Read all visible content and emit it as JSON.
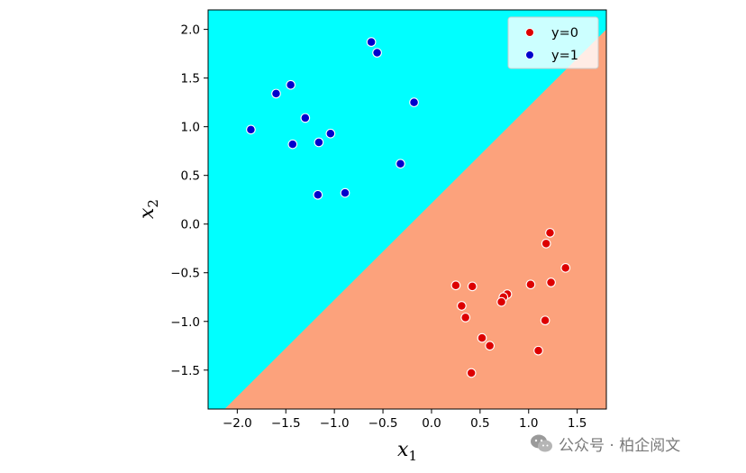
{
  "chart_data": {
    "type": "scatter",
    "xlabel": "x",
    "xlabel_sub": "1",
    "ylabel": "x",
    "ylabel_sub": "2",
    "xlim": [
      -2.3,
      1.8
    ],
    "ylim": [
      -1.9,
      2.2
    ],
    "xticks": [
      -2.0,
      -1.5,
      -1.0,
      -0.5,
      0.0,
      0.5,
      1.0,
      1.5
    ],
    "xtick_labels": [
      "−2.0",
      "−1.5",
      "−1.0",
      "−0.5",
      "0.0",
      "0.5",
      "1.0",
      "1.5"
    ],
    "yticks": [
      2.0,
      1.5,
      1.0,
      0.5,
      0.0,
      -0.5,
      -1.0,
      -1.5
    ],
    "ytick_labels": [
      "2.0",
      "1.5",
      "1.0",
      "0.5",
      "0.0",
      "−0.5",
      "−1.0",
      "−1.5"
    ],
    "decision_boundary": {
      "points": [
        [
          -2.13,
          -1.9
        ],
        [
          1.8,
          2.0
        ]
      ]
    },
    "regions": {
      "upper_color": "#00ffff",
      "lower_color": "#fca27c"
    },
    "legend": {
      "position": "top-right",
      "entries": [
        {
          "label": "y=0",
          "color": "#dd0000"
        },
        {
          "label": "y=1",
          "color": "#0000cc"
        }
      ]
    },
    "series": [
      {
        "name": "y=0",
        "color": "#dd0000",
        "x": [
          1.22,
          1.18,
          1.38,
          0.25,
          0.42,
          1.02,
          1.23,
          0.31,
          0.78,
          0.74,
          0.72,
          0.35,
          1.17,
          0.52,
          0.6,
          1.1,
          0.41
        ],
        "y": [
          -0.09,
          -0.2,
          -0.45,
          -0.63,
          -0.64,
          -0.62,
          -0.6,
          -0.84,
          -0.72,
          -0.75,
          -0.8,
          -0.96,
          -0.99,
          -1.17,
          -1.25,
          -1.3,
          -1.53
        ]
      },
      {
        "name": "y=1",
        "color": "#0000cc",
        "x": [
          -0.62,
          -0.56,
          -1.45,
          -1.6,
          -0.18,
          -1.3,
          -1.86,
          -1.04,
          -1.16,
          -1.43,
          -0.32,
          -0.89,
          -1.17
        ],
        "y": [
          1.87,
          1.76,
          1.43,
          1.34,
          1.25,
          1.09,
          0.97,
          0.93,
          0.84,
          0.82,
          0.62,
          0.32,
          0.3
        ]
      }
    ]
  },
  "watermark": {
    "text": "公众号 · 柏企阅文"
  }
}
